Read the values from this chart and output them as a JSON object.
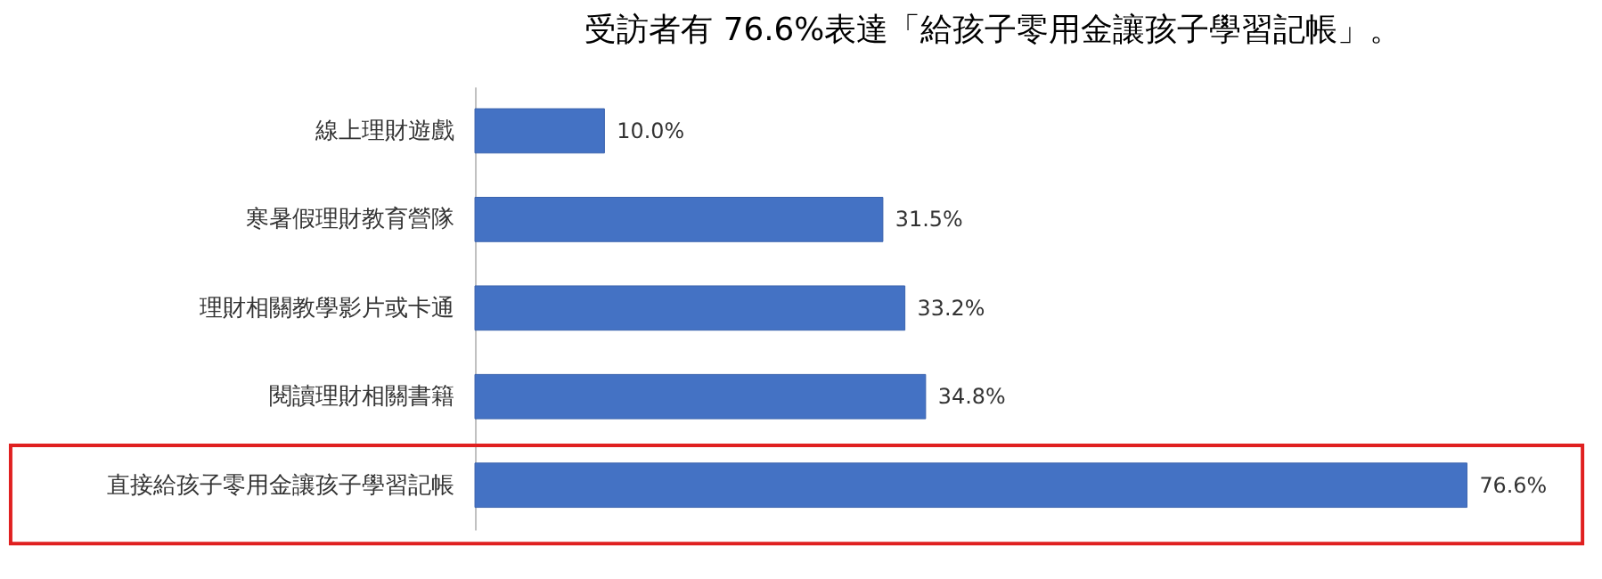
{
  "chart_data": {
    "type": "bar",
    "orientation": "horizontal",
    "title": "受訪者有 76.6%表達「給孩子零用金讓孩子學習記帳」。",
    "categories": [
      "線上理財遊戲",
      "寒暑假理財教育營隊",
      "理財相關教學影片或卡通",
      "閱讀理財相關書籍",
      "直接給孩子零用金讓孩子學習記帳"
    ],
    "values": [
      10.0,
      31.5,
      33.2,
      34.8,
      76.6
    ],
    "value_labels": [
      "10.0%",
      "31.5%",
      "33.2%",
      "34.8%",
      "76.6%"
    ],
    "color": "#4472c4"
  }
}
